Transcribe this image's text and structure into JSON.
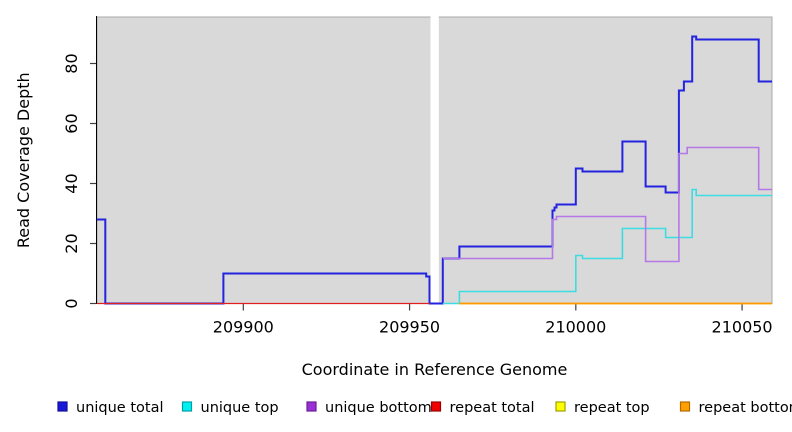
{
  "chart_data": {
    "type": "line",
    "subtype": "step-coverage",
    "title": "",
    "xlabel": "Coordinate in Reference Genome",
    "ylabel": "Read Coverage Depth",
    "xlim": [
      209856,
      210059
    ],
    "ylim": [
      0,
      95.5
    ],
    "x_ticks": [
      209900,
      209950,
      210000,
      210050
    ],
    "y_ticks": [
      0,
      20,
      40,
      60,
      80
    ],
    "grid": false,
    "legend_position": "bottom",
    "colors": {
      "plot_bg": "#d9d9d9",
      "plot_border": "#a9a9a9",
      "gap_fill": "#ffffff",
      "axis": "#000000",
      "tick": "#404040"
    },
    "gap_region": {
      "start": 209956.3,
      "end": 209958.8
    },
    "series": [
      {
        "name": "unique total",
        "color": "#2323e0",
        "legend_fill": "#1818d8",
        "legend_border": "#10109a",
        "xend": 210059,
        "points": [
          [
            209856,
            28
          ],
          [
            209858.5,
            0
          ],
          [
            209894,
            10
          ],
          [
            209955,
            9
          ],
          [
            209956,
            0
          ],
          [
            209960,
            15
          ],
          [
            209965,
            19
          ],
          [
            209993,
            31
          ],
          [
            209993.6,
            32
          ],
          [
            209994.2,
            33
          ],
          [
            210000,
            45
          ],
          [
            210002,
            44
          ],
          [
            210014,
            54
          ],
          [
            210021,
            39
          ],
          [
            210027,
            37
          ],
          [
            210031,
            71
          ],
          [
            210032.5,
            74
          ],
          [
            210035,
            89
          ],
          [
            210036.2,
            88
          ],
          [
            210055,
            74
          ]
        ]
      },
      {
        "name": "unique top",
        "color": "#3cdce2",
        "legend_fill": "#00f0f0",
        "legend_border": "#00a0a8",
        "xend": 210059,
        "points": [
          [
            209960,
            0
          ],
          [
            209965,
            4
          ],
          [
            210000,
            16
          ],
          [
            210002,
            15
          ],
          [
            210014,
            25
          ],
          [
            210027,
            22
          ],
          [
            210035,
            38
          ],
          [
            210036.2,
            36
          ]
        ]
      },
      {
        "name": "unique bottom",
        "color": "#b678e6",
        "legend_fill": "#9b2fd6",
        "legend_border": "#6a1f96",
        "xend": 210059,
        "points": [
          [
            209960,
            15
          ],
          [
            209993,
            28
          ],
          [
            209994.2,
            29
          ],
          [
            210021,
            14
          ],
          [
            210031,
            50
          ],
          [
            210033.5,
            52
          ],
          [
            210055,
            38
          ]
        ]
      },
      {
        "name": "repeat total",
        "color": "#e02020",
        "legend_fill": "#f00000",
        "legend_border": "#990000",
        "xend": 209956,
        "points": [
          [
            209856,
            0
          ]
        ]
      },
      {
        "name": "repeat top",
        "color": "#f0f000",
        "legend_fill": "#ffff00",
        "legend_border": "#a0a000",
        "xend": 210059,
        "points": [
          [
            209965,
            0
          ]
        ]
      },
      {
        "name": "repeat bottom",
        "color": "#ff9800",
        "legend_fill": "#ffa000",
        "legend_border": "#b36b00",
        "xend": 210059,
        "points": [
          [
            209965,
            0
          ]
        ]
      }
    ]
  }
}
